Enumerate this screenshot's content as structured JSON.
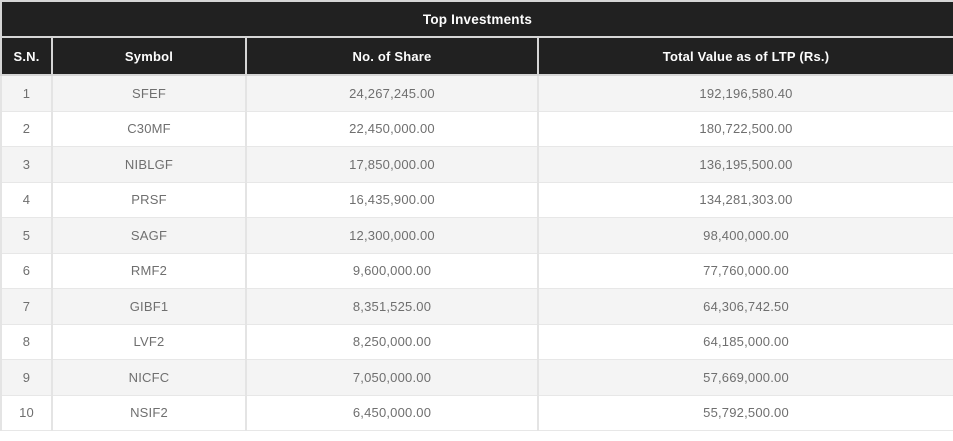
{
  "table": {
    "title": "Top Investments",
    "columns": [
      "S.N.",
      "Symbol",
      "No. of Share",
      "Total Value as of LTP (Rs.)"
    ],
    "rows": [
      {
        "sn": "1",
        "symbol": "SFEF",
        "shares": "24,267,245.00",
        "total_value": "192,196,580.40"
      },
      {
        "sn": "2",
        "symbol": "C30MF",
        "shares": "22,450,000.00",
        "total_value": "180,722,500.00"
      },
      {
        "sn": "3",
        "symbol": "NIBLGF",
        "shares": "17,850,000.00",
        "total_value": "136,195,500.00"
      },
      {
        "sn": "4",
        "symbol": "PRSF",
        "shares": "16,435,900.00",
        "total_value": "134,281,303.00"
      },
      {
        "sn": "5",
        "symbol": "SAGF",
        "shares": "12,300,000.00",
        "total_value": "98,400,000.00"
      },
      {
        "sn": "6",
        "symbol": "RMF2",
        "shares": "9,600,000.00",
        "total_value": "77,760,000.00"
      },
      {
        "sn": "7",
        "symbol": "GIBF1",
        "shares": "8,351,525.00",
        "total_value": "64,306,742.50"
      },
      {
        "sn": "8",
        "symbol": "LVF2",
        "shares": "8,250,000.00",
        "total_value": "64,185,000.00"
      },
      {
        "sn": "9",
        "symbol": "NICFC",
        "shares": "7,050,000.00",
        "total_value": "57,669,000.00"
      },
      {
        "sn": "10",
        "symbol": "NSIF2",
        "shares": "6,450,000.00",
        "total_value": "55,792,500.00"
      }
    ]
  },
  "colors": {
    "header_bg": "#212121",
    "header_text": "#fdfdfd",
    "row_alt_bg": "#f4f4f4",
    "row_bg": "#ffffff",
    "data_text": "#6f6f6f",
    "border": "#d6d6d6"
  },
  "chart_data": {
    "type": "table",
    "title": "Top Investments",
    "columns": [
      "S.N.",
      "Symbol",
      "No. of Share",
      "Total Value as of LTP (Rs.)"
    ],
    "rows": [
      [
        "1",
        "SFEF",
        "24,267,245.00",
        "192,196,580.40"
      ],
      [
        "2",
        "C30MF",
        "22,450,000.00",
        "180,722,500.00"
      ],
      [
        "3",
        "NIBLGF",
        "17,850,000.00",
        "136,195,500.00"
      ],
      [
        "4",
        "PRSF",
        "16,435,900.00",
        "134,281,303.00"
      ],
      [
        "5",
        "SAGF",
        "12,300,000.00",
        "98,400,000.00"
      ],
      [
        "6",
        "RMF2",
        "9,600,000.00",
        "77,760,000.00"
      ],
      [
        "7",
        "GIBF1",
        "8,351,525.00",
        "64,306,742.50"
      ],
      [
        "8",
        "LVF2",
        "8,250,000.00",
        "64,185,000.00"
      ],
      [
        "9",
        "NICFC",
        "7,050,000.00",
        "57,669,000.00"
      ],
      [
        "10",
        "NSIF2",
        "6,450,000.00",
        "55,792,500.00"
      ]
    ]
  }
}
